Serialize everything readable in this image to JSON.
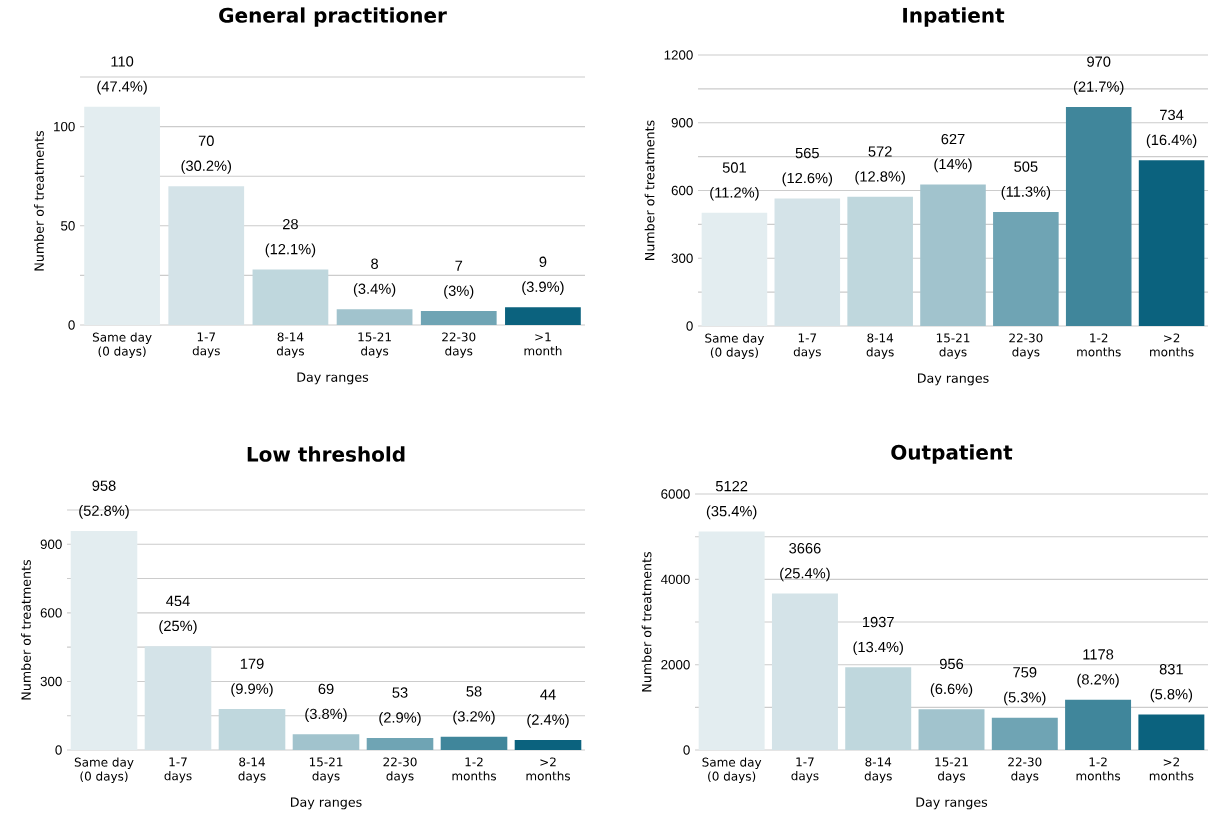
{
  "chart_data": [
    {
      "type": "bar",
      "title": "General practitioner",
      "xlabel": "Day ranges",
      "ylabel": "Number of treatments",
      "categories": [
        "Same day (0 days)",
        "1-7 days",
        "8-14 days",
        "15-21 days",
        "22-30 days",
        ">1 month"
      ],
      "values": [
        110,
        70,
        28,
        8,
        7,
        9
      ],
      "colors": [
        "#e3edf0",
        "#d4e3e8",
        "#bfd7dd",
        "#a1c3cd",
        "#6fa4b4",
        "#0b627e"
      ],
      "value_labels": [
        "110 (47.4%)",
        "70 (30.2%)",
        "28 (12.1%)",
        "8 (3.4%)",
        "7 (3%)",
        "9 (3.9%)"
      ],
      "grid": "y",
      "ylim": [
        0,
        125
      ],
      "yticks": [
        0,
        {
          "value": 25,
          "label": null
        },
        50,
        {
          "value": 75,
          "label": null
        },
        100,
        {
          "value": 125,
          "label": null
        }
      ]
    },
    {
      "type": "bar",
      "title": "Inpatient",
      "xlabel": "Day ranges",
      "ylabel": "Number of treatments",
      "categories": [
        "Same day (0 days)",
        "1-7 days",
        "8-14 days",
        "15-21 days",
        "22-30 days",
        "1-2 months",
        ">2 months"
      ],
      "values": [
        501,
        565,
        572,
        627,
        505,
        970,
        734
      ],
      "colors": [
        "#e3edf0",
        "#d4e3e8",
        "#bfd7dd",
        "#a1c3cd",
        "#6fa4b4",
        "#40869b",
        "#0b627e"
      ],
      "value_labels": [
        "501 (11.2%)",
        "565 (12.6%)",
        "572 (12.8%)",
        "627 (14%)",
        "505 (11.3%)",
        "970 (21.7%)",
        "734 (16.4%)"
      ],
      "grid": "y",
      "ylim": [
        0,
        1200
      ],
      "yticks": [
        0,
        {
          "value": 150,
          "label": null
        },
        300,
        {
          "value": 450,
          "label": null
        },
        600,
        {
          "value": 750,
          "label": null
        },
        900,
        {
          "value": 1050,
          "label": null
        },
        1200
      ]
    },
    {
      "type": "bar",
      "title": "Low threshold",
      "xlabel": "Day ranges",
      "ylabel": "Number of treatments",
      "categories": [
        "Same day (0 days)",
        "1-7 days",
        "8-14 days",
        "15-21 days",
        "22-30 days",
        "1-2 months",
        ">2 months"
      ],
      "values": [
        958,
        454,
        179,
        69,
        53,
        58,
        44
      ],
      "colors": [
        "#e3edf0",
        "#d4e3e8",
        "#bfd7dd",
        "#a1c3cd",
        "#6fa4b4",
        "#40869b",
        "#0b627e"
      ],
      "value_labels": [
        "958 (52.8%)",
        "454 (25%)",
        "179 (9.9%)",
        "69 (3.8%)",
        "53 (2.9%)",
        "58 (3.2%)",
        "44 (2.4%)"
      ],
      "grid": "y",
      "ylim": [
        0,
        1050
      ],
      "yticks": [
        0,
        {
          "value": 150,
          "label": null
        },
        300,
        {
          "value": 450,
          "label": null
        },
        600,
        {
          "value": 750,
          "label": null
        },
        900,
        {
          "value": 1050,
          "label": null
        }
      ]
    },
    {
      "type": "bar",
      "title": "Outpatient",
      "xlabel": "Day ranges",
      "ylabel": "Number of treatments",
      "categories": [
        "Same day (0 days)",
        "1-7 days",
        "8-14 days",
        "15-21 days",
        "22-30 days",
        "1-2 months",
        ">2 months"
      ],
      "values": [
        5122,
        3666,
        1937,
        956,
        759,
        1178,
        831
      ],
      "colors": [
        "#e3edf0",
        "#d4e3e8",
        "#bfd7dd",
        "#a1c3cd",
        "#6fa4b4",
        "#40869b",
        "#0b627e"
      ],
      "value_labels": [
        "5122 (35.4%)",
        "3666 (25.4%)",
        "1937 (13.4%)",
        "956 (6.6%)",
        "759 (5.3%)",
        "1178 (8.2%)",
        "831 (5.8%)"
      ],
      "grid": "y",
      "ylim": [
        0,
        6000
      ],
      "yticks": [
        0,
        {
          "value": 1000,
          "label": null
        },
        2000,
        {
          "value": 3000,
          "label": null
        },
        4000,
        {
          "value": 5000,
          "label": null
        },
        6000
      ]
    }
  ]
}
